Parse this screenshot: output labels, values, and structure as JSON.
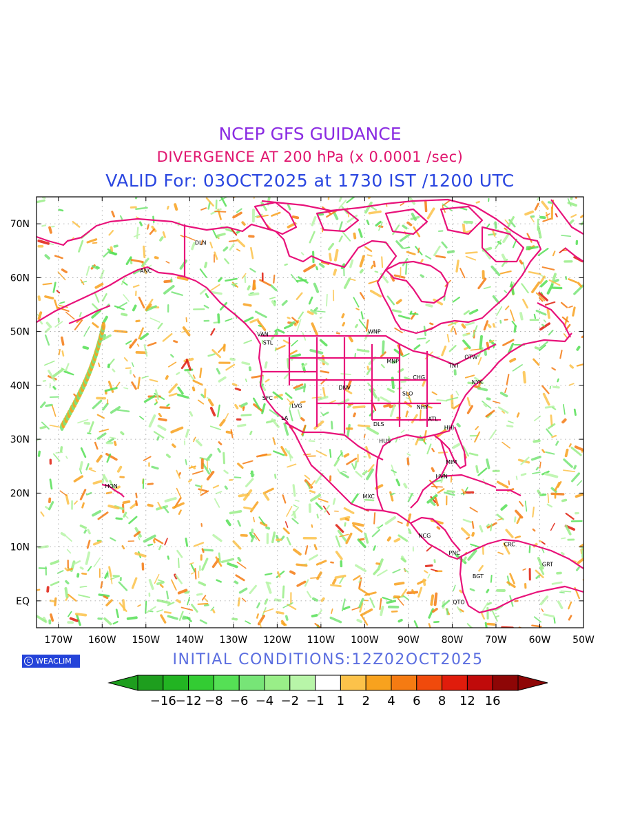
{
  "header": {
    "title": "NCEP GFS GUIDANCE",
    "subtitle": "DIVERGENCE AT 200 hPa (x 0.0001 /sec)",
    "valid": "VALID For: 03OCT2025 at 1730 IST /1200 UTC"
  },
  "colors": {
    "title": "#8a2be2",
    "subtitle": "#e0156e",
    "valid": "#2a46e0",
    "coast": "#e8127a",
    "init": "#5b6ee0",
    "logo_bg": "#2443d9"
  },
  "map": {
    "lon_range": [
      -175,
      -50
    ],
    "lat_range": [
      -5,
      75
    ],
    "lon_ticks": [
      {
        "value": -170,
        "label": "170W"
      },
      {
        "value": -160,
        "label": "160W"
      },
      {
        "value": -150,
        "label": "150W"
      },
      {
        "value": -140,
        "label": "140W"
      },
      {
        "value": -130,
        "label": "130W"
      },
      {
        "value": -120,
        "label": "120W"
      },
      {
        "value": -110,
        "label": "110W"
      },
      {
        "value": -100,
        "label": "100W"
      },
      {
        "value": -90,
        "label": "90W"
      },
      {
        "value": -80,
        "label": "80W"
      },
      {
        "value": -70,
        "label": "70W"
      },
      {
        "value": -60,
        "label": "60W"
      },
      {
        "value": -50,
        "label": "50W"
      }
    ],
    "lat_ticks": [
      {
        "value": 0,
        "label": "EQ"
      },
      {
        "value": 10,
        "label": "10N"
      },
      {
        "value": 20,
        "label": "20N"
      },
      {
        "value": 30,
        "label": "30N"
      },
      {
        "value": 40,
        "label": "40N"
      },
      {
        "value": 50,
        "label": "50N"
      },
      {
        "value": 60,
        "label": "60N"
      },
      {
        "value": 70,
        "label": "70N"
      }
    ],
    "grid": true,
    "cities": [
      {
        "label": "DLN",
        "lon": -137.5,
        "lat": 66.5
      },
      {
        "label": "ANC",
        "lon": -150,
        "lat": 61.3
      },
      {
        "label": "VAN",
        "lon": -123.3,
        "lat": 49.5
      },
      {
        "label": "STL",
        "lon": -122.1,
        "lat": 48.0
      },
      {
        "label": "WNP",
        "lon": -97.8,
        "lat": 50.0
      },
      {
        "label": "OTW",
        "lon": -75.7,
        "lat": 45.3
      },
      {
        "label": "MNP",
        "lon": -93.6,
        "lat": 44.5
      },
      {
        "label": "TNT",
        "lon": -79.6,
        "lat": 43.7
      },
      {
        "label": "CHG",
        "lon": -87.6,
        "lat": 41.5
      },
      {
        "label": "NYK",
        "lon": -74.3,
        "lat": 40.6
      },
      {
        "label": "DNV",
        "lon": -104.6,
        "lat": 39.6
      },
      {
        "label": "SFC",
        "lon": -122.2,
        "lat": 37.7
      },
      {
        "label": "SLO",
        "lon": -90.2,
        "lat": 38.5
      },
      {
        "label": "LVG",
        "lon": -115.5,
        "lat": 36.2
      },
      {
        "label": "NHY",
        "lon": -86.8,
        "lat": 36.0
      },
      {
        "label": "LA",
        "lon": -118.3,
        "lat": 34.0
      },
      {
        "label": "ATL",
        "lon": -84.4,
        "lat": 33.8
      },
      {
        "label": "DLS",
        "lon": -96.8,
        "lat": 32.8
      },
      {
        "label": "HHI",
        "lon": -80.7,
        "lat": 32.2
      },
      {
        "label": "HUS",
        "lon": -95.4,
        "lat": 29.7
      },
      {
        "label": "MIM",
        "lon": -80.2,
        "lat": 25.8
      },
      {
        "label": "HVN",
        "lon": -82.4,
        "lat": 23.1
      },
      {
        "label": "HON",
        "lon": -157.9,
        "lat": 21.3
      },
      {
        "label": "MXC",
        "lon": -99.1,
        "lat": 19.4
      },
      {
        "label": "NCG",
        "lon": -86.3,
        "lat": 12.1
      },
      {
        "label": "CRC",
        "lon": -66.9,
        "lat": 10.5
      },
      {
        "label": "PNC",
        "lon": -79.5,
        "lat": 8.9
      },
      {
        "label": "GRT",
        "lon": -58.2,
        "lat": 6.8
      },
      {
        "label": "BGT",
        "lon": -74.1,
        "lat": 4.6
      },
      {
        "label": "QTO",
        "lon": -78.5,
        "lat": -0.2
      }
    ]
  },
  "footer": {
    "init": "INITIAL  CONDITIONS:12Z02OCT2025",
    "logo_text": "WEACLIM",
    "logo_symbol": "C"
  },
  "colorbar": {
    "labels": [
      "-16",
      "-12",
      "-8",
      "-6",
      "-4",
      "-2",
      "-1",
      "1",
      "2",
      "4",
      "6",
      "8",
      "12",
      "16"
    ],
    "colors": [
      "#1e9e1e",
      "#22b422",
      "#33cc33",
      "#55e055",
      "#77e577",
      "#99ee88",
      "#b8f5a8",
      "#ffffff",
      "#fcc24a",
      "#f8a21e",
      "#f57b12",
      "#f04a0c",
      "#e01c0c",
      "#c00a0a",
      "#8e0606"
    ],
    "left_tip": "#1e9e1e",
    "right_tip": "#8e0606"
  }
}
